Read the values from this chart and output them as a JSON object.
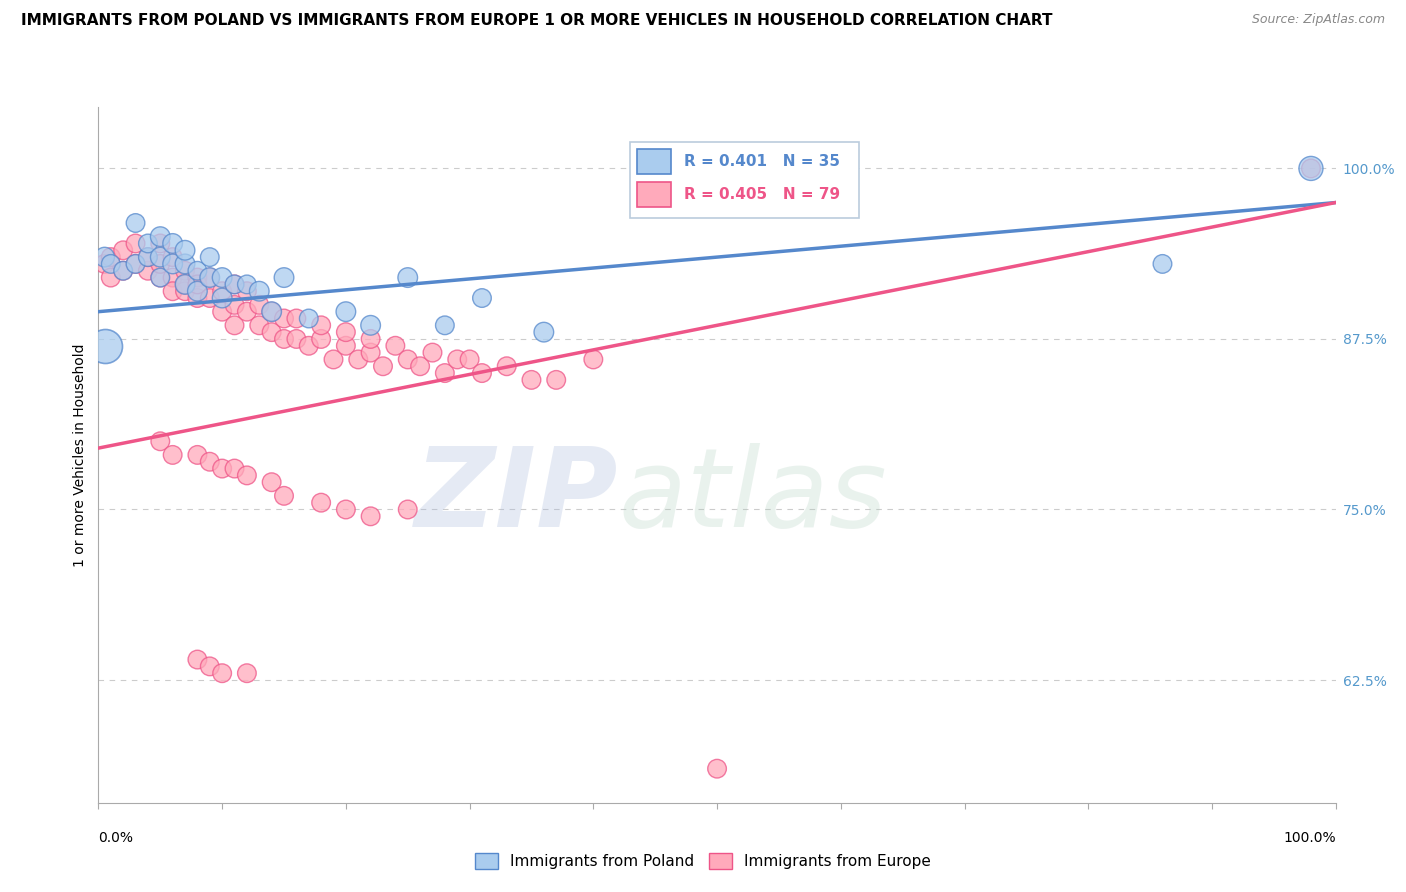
{
  "title": "IMMIGRANTS FROM POLAND VS IMMIGRANTS FROM EUROPE 1 OR MORE VEHICLES IN HOUSEHOLD CORRELATION CHART",
  "source": "Source: ZipAtlas.com",
  "ylabel": "1 or more Vehicles in Household",
  "right_yticks": [
    0.625,
    0.75,
    0.875,
    1.0
  ],
  "right_yticklabels": [
    "62.5%",
    "75.0%",
    "87.5%",
    "100.0%"
  ],
  "xlim": [
    0.0,
    1.0
  ],
  "ylim": [
    0.535,
    1.045
  ],
  "legend_blue_label": "Immigrants from Poland",
  "legend_pink_label": "Immigrants from Europe",
  "R_blue": 0.401,
  "N_blue": 35,
  "R_pink": 0.405,
  "N_pink": 79,
  "blue_color": "#5588CC",
  "pink_color": "#EE5588",
  "blue_fill": "#AACCEE",
  "pink_fill": "#FFAABB",
  "watermark_zip": "ZIP",
  "watermark_atlas": "atlas",
  "poland_x": [
    0.005,
    0.01,
    0.02,
    0.03,
    0.03,
    0.04,
    0.04,
    0.05,
    0.05,
    0.05,
    0.06,
    0.06,
    0.07,
    0.07,
    0.07,
    0.08,
    0.08,
    0.09,
    0.09,
    0.1,
    0.1,
    0.11,
    0.12,
    0.13,
    0.14,
    0.15,
    0.17,
    0.2,
    0.22,
    0.25,
    0.28,
    0.31,
    0.36,
    0.86,
    0.98
  ],
  "poland_y": [
    0.935,
    0.93,
    0.925,
    0.93,
    0.96,
    0.935,
    0.945,
    0.92,
    0.935,
    0.95,
    0.93,
    0.945,
    0.915,
    0.93,
    0.94,
    0.91,
    0.925,
    0.92,
    0.935,
    0.905,
    0.92,
    0.915,
    0.915,
    0.91,
    0.895,
    0.92,
    0.89,
    0.895,
    0.885,
    0.92,
    0.885,
    0.905,
    0.88,
    0.93,
    1.0
  ],
  "poland_size": [
    200,
    180,
    180,
    180,
    180,
    180,
    180,
    180,
    200,
    200,
    200,
    200,
    200,
    200,
    200,
    200,
    180,
    200,
    180,
    200,
    200,
    180,
    180,
    200,
    200,
    200,
    180,
    200,
    200,
    200,
    180,
    180,
    200,
    180,
    300
  ],
  "poland_large_idx": 0,
  "europe_x": [
    0.005,
    0.01,
    0.01,
    0.02,
    0.02,
    0.03,
    0.03,
    0.04,
    0.04,
    0.05,
    0.05,
    0.05,
    0.06,
    0.06,
    0.06,
    0.07,
    0.07,
    0.07,
    0.08,
    0.08,
    0.08,
    0.09,
    0.09,
    0.1,
    0.1,
    0.11,
    0.11,
    0.11,
    0.12,
    0.12,
    0.13,
    0.13,
    0.14,
    0.14,
    0.15,
    0.15,
    0.16,
    0.16,
    0.17,
    0.18,
    0.18,
    0.19,
    0.2,
    0.2,
    0.21,
    0.22,
    0.22,
    0.23,
    0.24,
    0.25,
    0.26,
    0.27,
    0.28,
    0.29,
    0.3,
    0.31,
    0.33,
    0.35,
    0.37,
    0.4,
    0.05,
    0.06,
    0.08,
    0.09,
    0.1,
    0.11,
    0.12,
    0.14,
    0.15,
    0.18,
    0.2,
    0.22,
    0.25,
    0.08,
    0.09,
    0.1,
    0.12,
    0.5,
    0.98
  ],
  "europe_y": [
    0.93,
    0.935,
    0.92,
    0.925,
    0.94,
    0.93,
    0.945,
    0.925,
    0.935,
    0.92,
    0.93,
    0.945,
    0.92,
    0.91,
    0.935,
    0.91,
    0.925,
    0.915,
    0.905,
    0.92,
    0.915,
    0.905,
    0.92,
    0.895,
    0.91,
    0.9,
    0.915,
    0.885,
    0.895,
    0.91,
    0.885,
    0.9,
    0.88,
    0.895,
    0.875,
    0.89,
    0.875,
    0.89,
    0.87,
    0.875,
    0.885,
    0.86,
    0.87,
    0.88,
    0.86,
    0.865,
    0.875,
    0.855,
    0.87,
    0.86,
    0.855,
    0.865,
    0.85,
    0.86,
    0.86,
    0.85,
    0.855,
    0.845,
    0.845,
    0.86,
    0.8,
    0.79,
    0.79,
    0.785,
    0.78,
    0.78,
    0.775,
    0.77,
    0.76,
    0.755,
    0.75,
    0.745,
    0.75,
    0.64,
    0.635,
    0.63,
    0.63,
    0.56,
    1.0
  ],
  "europe_size": [
    180,
    180,
    180,
    180,
    180,
    180,
    180,
    180,
    180,
    180,
    180,
    180,
    180,
    180,
    180,
    180,
    180,
    180,
    180,
    180,
    180,
    180,
    180,
    180,
    180,
    180,
    180,
    180,
    180,
    180,
    180,
    180,
    180,
    180,
    180,
    180,
    180,
    180,
    180,
    180,
    180,
    180,
    180,
    180,
    180,
    180,
    180,
    180,
    180,
    180,
    180,
    180,
    180,
    180,
    180,
    180,
    180,
    180,
    180,
    180,
    180,
    180,
    180,
    180,
    180,
    180,
    180,
    180,
    180,
    180,
    180,
    180,
    180,
    180,
    180,
    180,
    180,
    180,
    180
  ]
}
